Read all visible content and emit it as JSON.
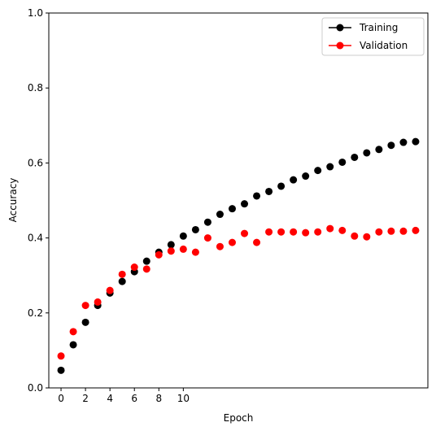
{
  "chart_data": {
    "type": "scatter",
    "title": "",
    "xlabel": "Epoch",
    "ylabel": "Accuracy",
    "xlim": [
      -1,
      30
    ],
    "ylim": [
      0,
      1
    ],
    "x_ticks": [
      0,
      2,
      4,
      6,
      8,
      10
    ],
    "x_tick_labels": [
      "0",
      "2",
      "4",
      "6",
      "8",
      "10"
    ],
    "y_ticks": [
      0.0,
      0.2,
      0.4,
      0.6,
      0.8,
      1.0
    ],
    "y_tick_labels": [
      "0.0",
      "0.2",
      "0.4",
      "0.6",
      "0.8",
      "1.0"
    ],
    "grid": false,
    "legend_position": "upper right",
    "x": [
      0,
      1,
      2,
      3,
      4,
      5,
      6,
      7,
      8,
      9,
      10,
      11,
      12,
      13,
      14,
      15,
      16,
      17,
      18,
      19,
      20,
      21,
      22,
      23,
      24,
      25,
      26,
      27,
      28,
      29
    ],
    "series": [
      {
        "name": "Training",
        "color": "#000000",
        "marker": "circle",
        "values": [
          0.047,
          0.115,
          0.175,
          0.22,
          0.253,
          0.284,
          0.31,
          0.338,
          0.362,
          0.382,
          0.405,
          0.422,
          0.442,
          0.463,
          0.478,
          0.491,
          0.512,
          0.524,
          0.538,
          0.555,
          0.565,
          0.58,
          0.59,
          0.602,
          0.615,
          0.627,
          0.636,
          0.647,
          0.655,
          0.657
        ]
      },
      {
        "name": "Validation",
        "color": "#ff0000",
        "marker": "circle",
        "values": [
          0.085,
          0.15,
          0.22,
          0.229,
          0.26,
          0.303,
          0.322,
          0.317,
          0.355,
          0.365,
          0.37,
          0.362,
          0.4,
          0.377,
          0.388,
          0.412,
          0.388,
          0.416,
          0.416,
          0.416,
          0.414,
          0.416,
          0.425,
          0.42,
          0.405,
          0.403,
          0.416,
          0.418,
          0.418,
          0.42
        ]
      }
    ]
  }
}
